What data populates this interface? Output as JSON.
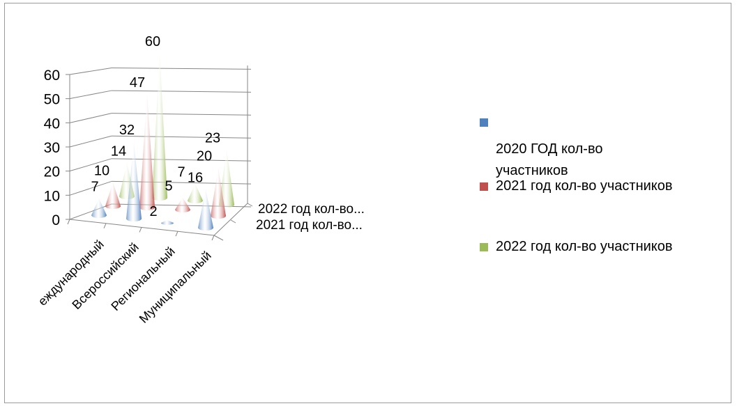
{
  "chart_data": {
    "type": "bar",
    "style": "3d-cone",
    "categories": [
      "Международный",
      "Всероссийский",
      "Региональный",
      "Муниципальный"
    ],
    "category_labels_shown": [
      "еждународный",
      "Всероссийский",
      "Региональный",
      "Муниципальный"
    ],
    "series": [
      {
        "name": "2020 ГОД кол-во участников",
        "values": [
          7,
          32,
          2,
          16
        ],
        "color": "#4f81bd"
      },
      {
        "name": "2021 год кол-во участников",
        "values": [
          10,
          47,
          5,
          20
        ],
        "color": "#c0504d"
      },
      {
        "name": "2022 год кол-во участников",
        "values": [
          14,
          60,
          7,
          23
        ],
        "color": "#9bbb59"
      }
    ],
    "data_labels": {
      "2020": [
        "7",
        "32",
        "2",
        "16"
      ],
      "2021": [
        "10",
        "47",
        "5",
        "20"
      ],
      "2022": [
        "14",
        "60",
        "7",
        "23"
      ]
    },
    "yticks": [
      "0",
      "10",
      "20",
      "30",
      "40",
      "50",
      "60"
    ],
    "ylim": [
      0,
      60
    ],
    "depth_axis_labels": [
      "2022 год кол-во...",
      "2021 год кол-во..."
    ],
    "legend_position": "right",
    "grid": true
  },
  "legend": {
    "item1_line1": "2020 ГОД кол-во",
    "item1_line2": "участников",
    "item2": "2021 год кол-во участников",
    "item3": "2022 год кол-во участников"
  }
}
